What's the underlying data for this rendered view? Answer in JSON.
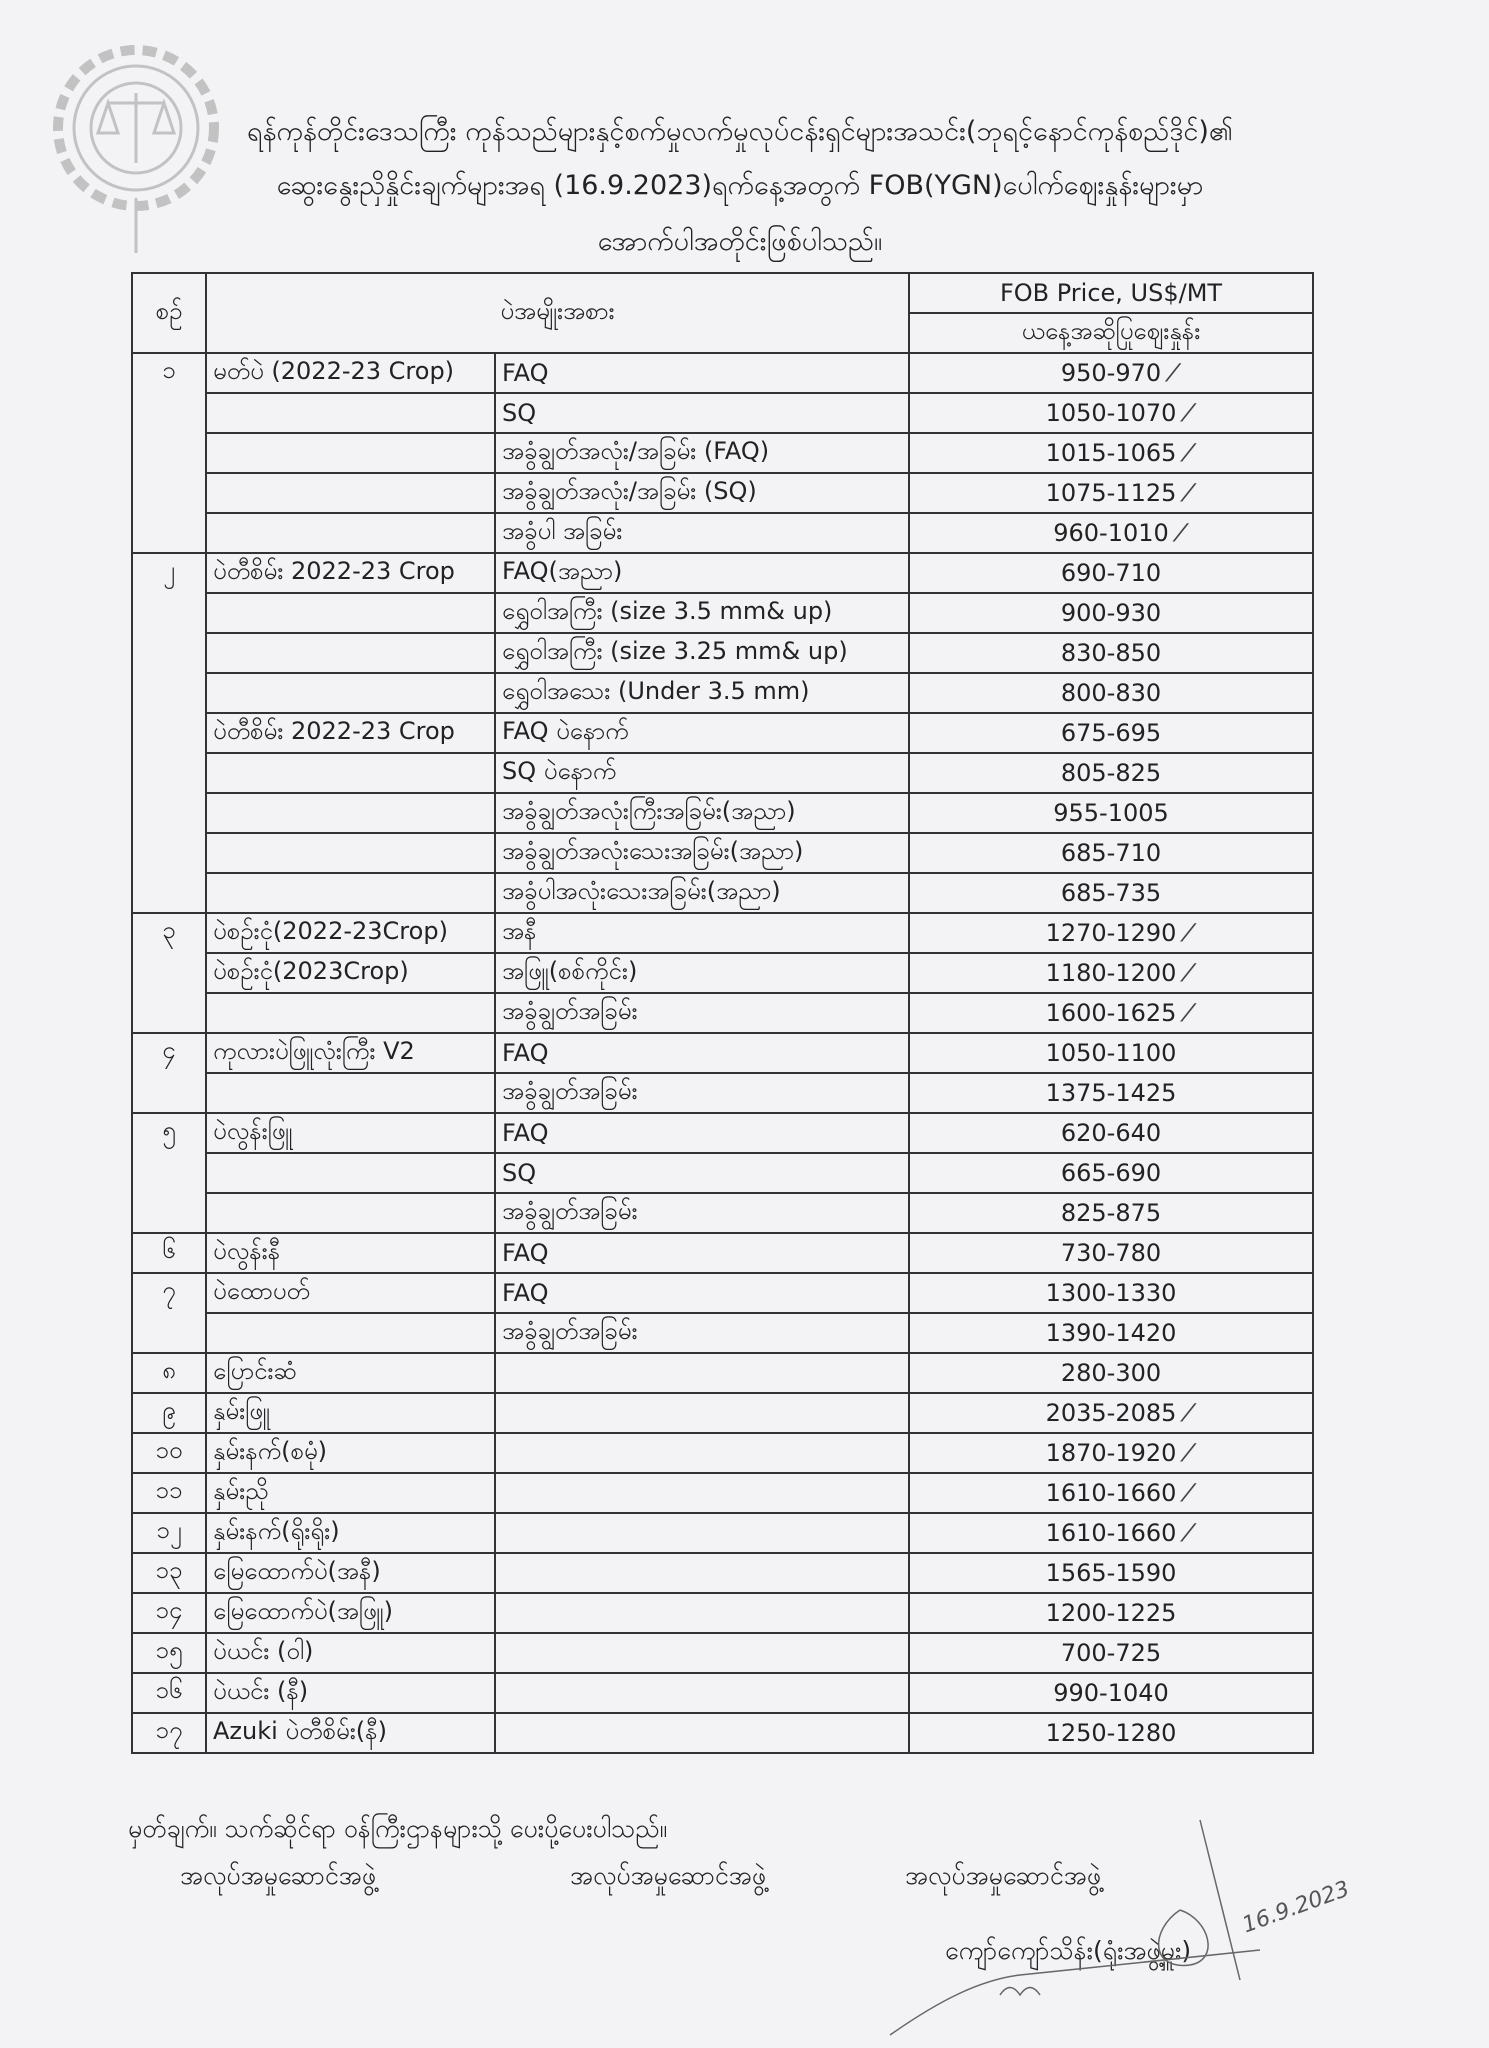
{
  "header": {
    "line1": "ရန်ကုန်တိုင်းဒေသကြီး ကုန်သည်များနှင့်စက်မှုလက်မှုလုပ်ငန်းရှင်များအသင်း(ဘုရင့်နောင်ကုန်စည်ဒိုင်)၏",
    "line2": "ဆွေးနွေးညှိနှိုင်းချက်များအရ (16.9.2023)ရက်နေ့အတွက် FOB(YGN)ပေါက်ဈေးနှုန်းများမှာ",
    "line3": "အောက်ပါအတိုင်းဖြစ်ပါသည်။"
  },
  "table": {
    "col_no": "စဉ်",
    "col_item": "ပဲအမျိုးအစား",
    "col_price": "FOB Price, US$/MT",
    "col_price_sub": "ယနေ့အဆိုပြုဈေးနှုန်း",
    "groups": [
      {
        "no": "၁",
        "rows": [
          {
            "item": "မတ်ပဲ (2022-23 Crop)",
            "grade": "FAQ",
            "price": "950-970",
            "tick": true
          },
          {
            "item": "",
            "grade": "SQ",
            "price": "1050-1070",
            "tick": true
          },
          {
            "item": "",
            "grade": "အခွံချွတ်အလုံး/အခြမ်း (FAQ)",
            "price": "1015-1065",
            "tick": true
          },
          {
            "item": "",
            "grade": "အခွံချွတ်အလုံး/အခြမ်း (SQ)",
            "price": "1075-1125",
            "tick": true
          },
          {
            "item": "",
            "grade": "အခွံပါ အခြမ်း",
            "price": "960-1010",
            "tick": true
          }
        ]
      },
      {
        "no": "၂",
        "rows": [
          {
            "item": "ပဲတီစိမ်း 2022-23 Crop",
            "grade": "FAQ(အညာ)",
            "price": "690-710"
          },
          {
            "item": "",
            "grade": "ရွှေဝါအကြီး (size 3.5 mm& up)",
            "price": "900-930"
          },
          {
            "item": "",
            "grade": "ရွှေဝါအကြီး (size 3.25 mm& up)",
            "price": "830-850"
          },
          {
            "item": "",
            "grade": "ရွှေဝါအသေး (Under 3.5 mm)",
            "price": "800-830"
          },
          {
            "item": "ပဲတီစိမ်း 2022-23 Crop",
            "grade": "FAQ ပဲနောက်",
            "price": "675-695"
          },
          {
            "item": "",
            "grade": "SQ ပဲနောက်",
            "price": "805-825"
          },
          {
            "item": "",
            "grade": "အခွံချွတ်အလုံးကြီးအခြမ်း(အညာ)",
            "price": "955-1005"
          },
          {
            "item": "",
            "grade": "အခွံချွတ်အလုံးသေးအခြမ်း(အညာ)",
            "price": "685-710"
          },
          {
            "item": "",
            "grade": "အခွံပါအလုံးသေးအခြမ်း(အညာ)",
            "price": "685-735"
          }
        ]
      },
      {
        "no": "၃",
        "rows": [
          {
            "item": "ပဲစဉ်းငုံ(2022-23Crop)",
            "grade": "အနီ",
            "price": "1270-1290",
            "tick": true
          },
          {
            "item": "ပဲစဉ်းငုံ(2023Crop)",
            "grade": "အဖြူ(စစ်ကိုင်း)",
            "price": "1180-1200",
            "tick": true
          },
          {
            "item": "",
            "grade": "အခွံချွတ်အခြမ်း",
            "price": "1600-1625",
            "tick": true
          }
        ]
      },
      {
        "no": "၄",
        "rows": [
          {
            "item": "ကုလားပဲဖြူလုံးကြီး V2",
            "grade": "FAQ",
            "price": "1050-1100"
          },
          {
            "item": "",
            "grade": "အခွံချွတ်အခြမ်း",
            "price": "1375-1425"
          }
        ]
      },
      {
        "no": "၅",
        "rows": [
          {
            "item": "ပဲလွန်းဖြူ",
            "grade": "FAQ",
            "price": "620-640"
          },
          {
            "item": "",
            "grade": "SQ",
            "price": "665-690"
          },
          {
            "item": "",
            "grade": "အခွံချွတ်အခြမ်း",
            "price": "825-875"
          }
        ]
      },
      {
        "no": "၆",
        "rows": [
          {
            "item": "ပဲလွန်းနီ",
            "grade": "FAQ",
            "price": "730-780"
          }
        ]
      },
      {
        "no": "၇",
        "rows": [
          {
            "item": "ပဲထောပတ်",
            "grade": "FAQ",
            "price": "1300-1330"
          },
          {
            "item": "",
            "grade": "အခွံချွတ်အခြမ်း",
            "price": "1390-1420"
          }
        ]
      },
      {
        "no": "၈",
        "rows": [
          {
            "item": "ပြောင်းဆံ",
            "grade": "",
            "price": "280-300"
          }
        ]
      },
      {
        "no": "၉",
        "rows": [
          {
            "item": "နှမ်းဖြူ",
            "grade": "",
            "price": "2035-2085",
            "tick": true
          }
        ]
      },
      {
        "no": "၁၀",
        "rows": [
          {
            "item": "နှမ်းနက်(စမုံ)",
            "grade": "",
            "price": "1870-1920",
            "tick": true
          }
        ]
      },
      {
        "no": "၁၁",
        "rows": [
          {
            "item": "နှမ်းညို",
            "grade": "",
            "price": "1610-1660",
            "tick": true
          }
        ]
      },
      {
        "no": "၁၂",
        "rows": [
          {
            "item": "နှမ်းနက်(ရိုးရိုး)",
            "grade": "",
            "price": "1610-1660",
            "tick": true
          }
        ]
      },
      {
        "no": "၁၃",
        "rows": [
          {
            "item": "မြေထောက်ပဲ(အနီ)",
            "grade": "",
            "price": "1565-1590"
          }
        ]
      },
      {
        "no": "၁၄",
        "rows": [
          {
            "item": "မြေထောက်ပဲ(အဖြူ)",
            "grade": "",
            "price": "1200-1225"
          }
        ]
      },
      {
        "no": "၁၅",
        "rows": [
          {
            "item": "ပဲယင်း (ဝါ)",
            "grade": "",
            "price": "700-725"
          }
        ]
      },
      {
        "no": "၁၆",
        "rows": [
          {
            "item": "ပဲယင်း (နီ)",
            "grade": "",
            "price": "990-1040"
          }
        ]
      },
      {
        "no": "၁၇",
        "rows": [
          {
            "item": "Azuki ပဲတီစိမ်း(နီ)",
            "grade": "",
            "price": "1250-1280"
          }
        ]
      }
    ]
  },
  "footer": {
    "note": "မှတ်ချက်။ သက်ဆိုင်ရာ ဝန်ကြီးဌာနများသို့ ပေးပို့ပေးပါသည်။",
    "org1": "အလုပ်အမှုဆောင်အဖွဲ့",
    "org2": "အလုပ်အမှုဆောင်အဖွဲ့",
    "org3": "အလုပ်အမှုဆောင်အဖွဲ့",
    "signer": "ကျော်ကျော်သိန်း(ရုံးအဖွဲ့မှူး)",
    "handwritten_date": "16.9.2023"
  },
  "colors": {
    "ink": "#222222",
    "paper": "#f3f3f5",
    "seal": "#888888"
  }
}
